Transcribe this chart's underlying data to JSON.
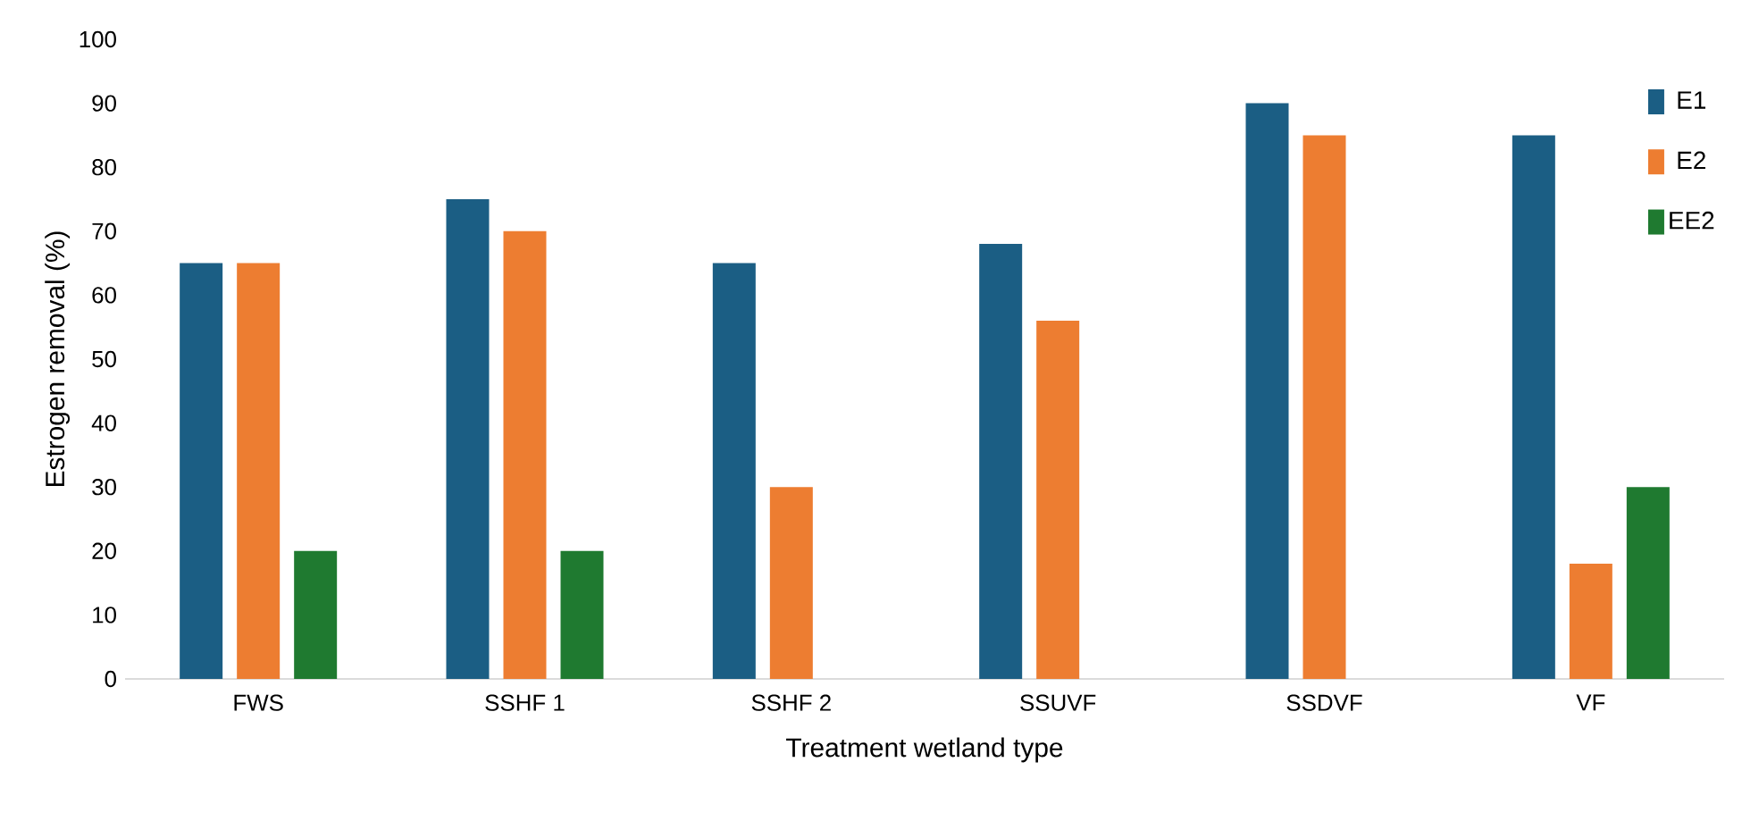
{
  "chart_data": {
    "type": "bar",
    "xlabel": "Treatment wetland type",
    "ylabel": "Estrogen removal (%)",
    "categories": [
      "FWS",
      "SSHF 1",
      "SSHF 2",
      "SSUVF",
      "SSDVF",
      "VF"
    ],
    "series": [
      {
        "name": "E1",
        "color": "#1b5e84",
        "values": [
          65,
          75,
          65,
          68,
          90,
          85
        ]
      },
      {
        "name": "E2",
        "color": "#ed7d31",
        "values": [
          65,
          70,
          30,
          56,
          85,
          18
        ]
      },
      {
        "name": "EE2",
        "color": "#1f7a30",
        "values": [
          20,
          20,
          null,
          null,
          null,
          30
        ]
      }
    ],
    "ylim": [
      0,
      100
    ],
    "yticks": [
      0,
      10,
      20,
      30,
      40,
      50,
      60,
      70,
      80,
      90,
      100
    ],
    "grid": false,
    "legend": "top right"
  }
}
